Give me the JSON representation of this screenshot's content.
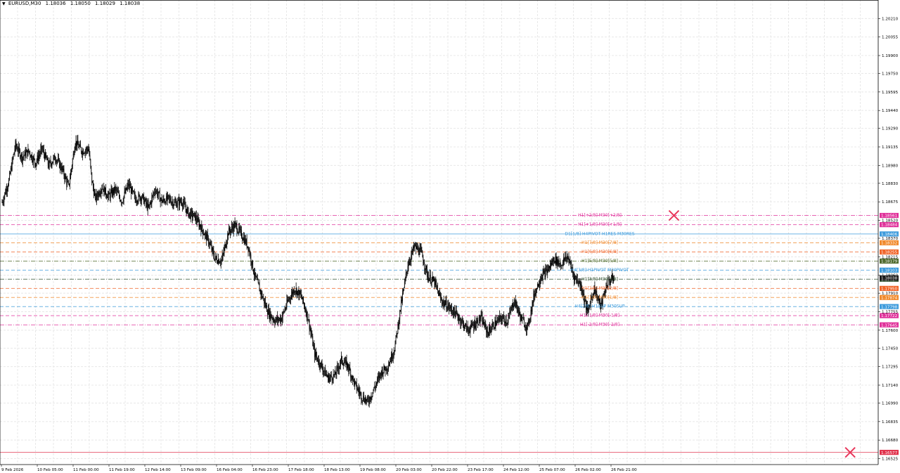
{
  "header": {
    "symbol": "EURUSD,M30",
    "open": "1.18036",
    "high": "1.18050",
    "low": "1.18029",
    "close": "1.18038"
  },
  "colors": {
    "candle": "#000000",
    "grid": "#e8e8e8",
    "pink": "#e0309a",
    "blue": "#3d9bdc",
    "orange": "#f0882a",
    "red_orange": "#f06428",
    "olive": "#4f6a2c",
    "dark_green": "#2f4f2f",
    "red": "#e0304a",
    "marker": "#e8365a"
  },
  "chart_data": {
    "type": "candlestick",
    "symbol": "EURUSD",
    "timeframe": "M30",
    "ylim": [
      1.16475,
      1.20365
    ],
    "y_ticks": [
      "1.20210",
      "1.20055",
      "1.19900",
      "1.19750",
      "1.19595",
      "1.19440",
      "1.19290",
      "1.19135",
      "1.18980",
      "1.18830",
      "1.18675",
      "1.18520",
      "1.18370",
      "1.18215",
      "1.18060",
      "1.17910",
      "1.17755",
      "1.17600",
      "1.17450",
      "1.17295",
      "1.17140",
      "1.16990",
      "1.16835",
      "1.16680",
      "1.16525"
    ],
    "x_ticks": [
      "9 Feb 2026",
      "10 Feb 05:00",
      "11 Feb 00:00",
      "11 Feb 19:00",
      "12 Feb 14:00",
      "13 Feb 09:00",
      "16 Feb 04:00",
      "16 Feb 23:00",
      "17 Feb 18:00",
      "18 Feb 13:00",
      "19 Feb 08:00",
      "20 Feb 03:00",
      "20 Feb 22:00",
      "23 Feb 17:00",
      "24 Feb 12:00",
      "25 Feb 07:00",
      "26 Feb 02:00",
      "26 Feb 21:00"
    ],
    "close_path": [
      [
        0,
        1.1867
      ],
      [
        2,
        1.1885
      ],
      [
        4,
        1.1915
      ],
      [
        6,
        1.1905
      ],
      [
        8,
        1.191
      ],
      [
        10,
        1.19
      ],
      [
        12,
        1.1912
      ],
      [
        14,
        1.1898
      ],
      [
        16,
        1.1905
      ],
      [
        18,
        1.1895
      ],
      [
        20,
        1.188
      ],
      [
        22,
        1.1918
      ],
      [
        24,
        1.191
      ],
      [
        26,
        1.1912
      ],
      [
        27,
        1.1885
      ],
      [
        28,
        1.187
      ],
      [
        30,
        1.188
      ],
      [
        32,
        1.1872
      ],
      [
        34,
        1.1878
      ],
      [
        36,
        1.1868
      ],
      [
        38,
        1.1882
      ],
      [
        40,
        1.187
      ],
      [
        42,
        1.1872
      ],
      [
        44,
        1.1862
      ],
      [
        46,
        1.1878
      ],
      [
        48,
        1.1868
      ],
      [
        50,
        1.187
      ],
      [
        52,
        1.1866
      ],
      [
        54,
        1.1868
      ],
      [
        56,
        1.1858
      ],
      [
        58,
        1.1855
      ],
      [
        60,
        1.1845
      ],
      [
        62,
        1.1835
      ],
      [
        64,
        1.182
      ],
      [
        66,
        1.1818
      ],
      [
        68,
        1.1842
      ],
      [
        70,
        1.1848
      ],
      [
        72,
        1.184
      ],
      [
        74,
        1.183
      ],
      [
        76,
        1.1805
      ],
      [
        78,
        1.179
      ],
      [
        80,
        1.1775
      ],
      [
        82,
        1.1768
      ],
      [
        84,
        1.177
      ],
      [
        86,
        1.1785
      ],
      [
        88,
        1.1795
      ],
      [
        90,
        1.1788
      ],
      [
        92,
        1.177
      ],
      [
        94,
        1.174
      ],
      [
        96,
        1.173
      ],
      [
        98,
        1.172
      ],
      [
        100,
        1.1722
      ],
      [
        102,
        1.1735
      ],
      [
        104,
        1.173
      ],
      [
        106,
        1.1715
      ],
      [
        108,
        1.1705
      ],
      [
        110,
        1.17
      ],
      [
        112,
        1.1712
      ],
      [
        114,
        1.1725
      ],
      [
        116,
        1.173
      ],
      [
        118,
        1.1745
      ],
      [
        120,
        1.1782
      ],
      [
        122,
        1.1815
      ],
      [
        124,
        1.183
      ],
      [
        126,
        1.1825
      ],
      [
        128,
        1.1805
      ],
      [
        130,
        1.18
      ],
      [
        132,
        1.1785
      ],
      [
        134,
        1.178
      ],
      [
        136,
        1.1775
      ],
      [
        138,
        1.1768
      ],
      [
        140,
        1.176
      ],
      [
        142,
        1.1765
      ],
      [
        144,
        1.177
      ],
      [
        146,
        1.1758
      ],
      [
        148,
        1.1765
      ],
      [
        150,
        1.177
      ],
      [
        152,
        1.1768
      ],
      [
        154,
        1.1785
      ],
      [
        156,
        1.177
      ],
      [
        158,
        1.1762
      ],
      [
        160,
        1.179
      ],
      [
        162,
        1.1805
      ],
      [
        164,
        1.181
      ],
      [
        166,
        1.182
      ],
      [
        168,
        1.1815
      ],
      [
        170,
        1.1822
      ],
      [
        172,
        1.1805
      ],
      [
        174,
        1.1798
      ],
      [
        176,
        1.1775
      ],
      [
        178,
        1.1795
      ],
      [
        180,
        1.178
      ],
      [
        182,
        1.18
      ],
      [
        184,
        1.1804
      ]
    ],
    "n_bars": 184,
    "levels": [
      {
        "label": "H1[+2/8] M30[+2/8]",
        "price": 1.18561,
        "price_label": "1.18561",
        "color": "pink",
        "dash": "dashdot",
        "show_label": true
      },
      {
        "label": "H1[+1/8] M30[+1/8]",
        "price": 1.18484,
        "price_label": "1.18484",
        "color": "pink",
        "dash": "dash",
        "show_label": true
      },
      {
        "label": "D1[1/8] H4PIVOT H1RES M30RES",
        "price": 1.18406,
        "price_label": "1.18406",
        "color": "blue",
        "dash": "solid",
        "show_label": true
      },
      {
        "label": "H1[7/8] M30[7/8]",
        "price": 1.18332,
        "price_label": "1.18332",
        "color": "orange",
        "dash": "dash",
        "show_label": true
      },
      {
        "label": "H1[6/8] M30[6/8]",
        "price": 1.18255,
        "price_label": "1.18255",
        "color": "red_orange",
        "dash": "dash",
        "show_label": true
      },
      {
        "label": "H1[5/8] M30[5/8]",
        "price": 1.18179,
        "price_label": "1.18179",
        "color": "olive",
        "dash": "dashdot",
        "show_label": true
      },
      {
        "label": "H4[3/8] H1PIVOT M30PIVOT",
        "price": 1.18103,
        "price_label": "1.18103",
        "color": "blue",
        "dash": "dash",
        "show_label": true
      },
      {
        "label": "H1[3/8] M30[3/8]",
        "price": 1.18027,
        "price_label": "1.18027",
        "color": "dark_green",
        "dash": "dashdot",
        "show_label": true
      },
      {
        "label": "H1[2/8] M30[2/8]",
        "price": 1.1795,
        "price_label": "1.17950",
        "color": "red_orange",
        "dash": "dash",
        "show_label": true
      },
      {
        "label": "H1[1/8] M30[1/8]",
        "price": 1.17874,
        "price_label": "1.17874",
        "color": "orange",
        "dash": "dash",
        "show_label": true
      },
      {
        "label": "H4[2/8] H1SUP M30SUP",
        "price": 1.17798,
        "price_label": "1.17798",
        "color": "blue",
        "dash": "dash",
        "show_label": true
      },
      {
        "label": "H1[-1/8] M30[-1/8]",
        "price": 1.17722,
        "price_label": "1.17722",
        "color": "pink",
        "dash": "dash",
        "show_label": true
      },
      {
        "label": "H1[-2/8] M30[-2/8]",
        "price": 1.17645,
        "price_label": "1.17645",
        "color": "pink",
        "dash": "dashdot",
        "show_label": true
      },
      {
        "label": "",
        "price": 1.16577,
        "price_label": "1.16577",
        "color": "red",
        "dash": "solid",
        "show_label": false
      }
    ],
    "current_price": {
      "price": 1.18038,
      "label": "1.18038"
    },
    "markers": [
      {
        "type": "cross",
        "bar": 202,
        "price": 1.18561
      },
      {
        "type": "cross",
        "bar": 255,
        "price": 1.16577
      }
    ]
  }
}
